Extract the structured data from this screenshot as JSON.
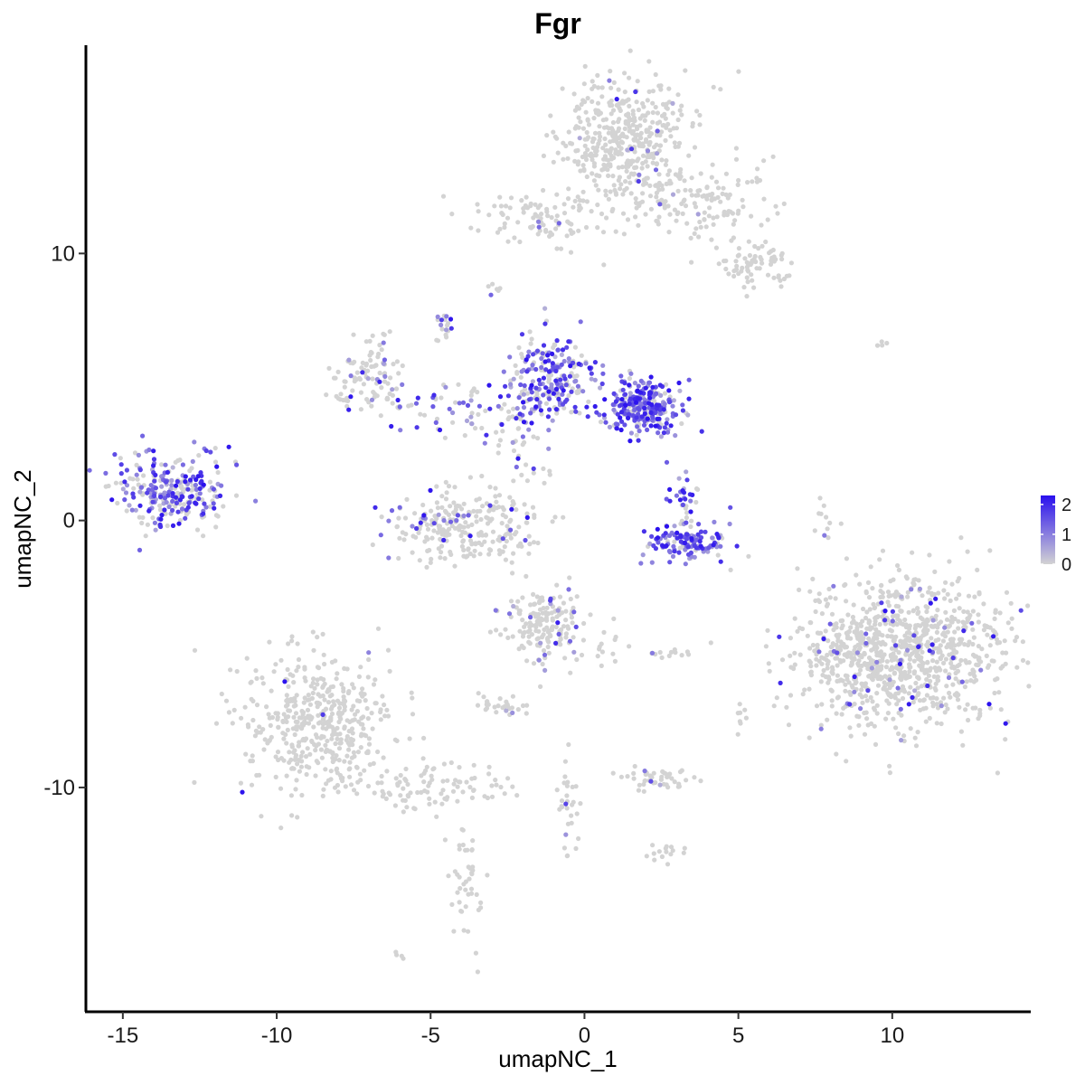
{
  "chart_data": {
    "type": "scatter",
    "title": "Fgr",
    "xlabel": "umapNC_1",
    "ylabel": "umapNC_2",
    "xlim": [
      -16.2,
      14.5
    ],
    "ylim": [
      -18.4,
      17.8
    ],
    "x_ticks": [
      -15,
      -10,
      -5,
      0,
      5,
      10
    ],
    "y_ticks": [
      -10,
      0,
      10
    ],
    "x_tick_labels": [
      "-15",
      "-10",
      "-5",
      "0",
      "5",
      "10"
    ],
    "y_tick_labels": [
      "-10",
      "0",
      "10"
    ],
    "grid": false,
    "legend": {
      "placement": "right",
      "type": "colorbar",
      "min": 0,
      "max": 2.3,
      "ticks": [
        0,
        1,
        2
      ],
      "tick_labels": [
        "0",
        "1",
        "2"
      ]
    },
    "colors": {
      "low": "#d3d3d3",
      "high": "#2a10ee"
    },
    "clusters": [
      {
        "cx": 1.2,
        "cy": 14.4,
        "sx": 1.0,
        "sy": 1.2,
        "n": 420,
        "expr": 0.02
      },
      {
        "cx": 3.5,
        "cy": 12.0,
        "sx": 1.3,
        "sy": 0.8,
        "n": 160,
        "expr": 0.03
      },
      {
        "cx": 5.5,
        "cy": 9.5,
        "sx": 0.6,
        "sy": 0.4,
        "n": 70,
        "expr": 0.02
      },
      {
        "cx": -1.7,
        "cy": 11.3,
        "sx": 1.1,
        "sy": 0.5,
        "n": 90,
        "expr": 0.05
      },
      {
        "cx": 10.5,
        "cy": -4.8,
        "sx": 1.7,
        "sy": 1.4,
        "n": 900,
        "expr": 0.05
      },
      {
        "cx": 8.8,
        "cy": -5.4,
        "sx": 0.7,
        "sy": 0.9,
        "n": 120,
        "expr": 0.06
      },
      {
        "cx": -13.5,
        "cy": 1.1,
        "sx": 0.85,
        "sy": 0.65,
        "n": 260,
        "expr": 0.65
      },
      {
        "cx": -1.0,
        "cy": 5.3,
        "sx": 0.7,
        "sy": 0.8,
        "n": 220,
        "expr": 0.65
      },
      {
        "cx": 1.9,
        "cy": 4.2,
        "sx": 0.6,
        "sy": 0.5,
        "n": 260,
        "expr": 0.85
      },
      {
        "cx": 3.4,
        "cy": -0.8,
        "sx": 0.7,
        "sy": 0.3,
        "n": 130,
        "expr": 0.85
      },
      {
        "cx": 3.2,
        "cy": 0.8,
        "sx": 0.25,
        "sy": 0.6,
        "n": 30,
        "expr": 0.75
      },
      {
        "cx": -3.9,
        "cy": -0.3,
        "sx": 1.2,
        "sy": 0.7,
        "n": 260,
        "expr": 0.12
      },
      {
        "cx": -7.0,
        "cy": 5.3,
        "sx": 0.6,
        "sy": 0.7,
        "n": 110,
        "expr": 0.18
      },
      {
        "cx": -4.2,
        "cy": 4.2,
        "sx": 1.0,
        "sy": 0.6,
        "n": 60,
        "expr": 0.45
      },
      {
        "cx": -2.2,
        "cy": 3.0,
        "sx": 0.5,
        "sy": 1.2,
        "n": 55,
        "expr": 0.35
      },
      {
        "cx": -4.6,
        "cy": 7.2,
        "sx": 0.2,
        "sy": 0.25,
        "n": 18,
        "expr": 0.55
      },
      {
        "cx": -1.2,
        "cy": -3.9,
        "sx": 0.7,
        "sy": 0.7,
        "n": 170,
        "expr": 0.07
      },
      {
        "cx": -2.6,
        "cy": -6.9,
        "sx": 0.4,
        "sy": 0.2,
        "n": 28,
        "expr": 0.05
      },
      {
        "cx": -8.6,
        "cy": -7.6,
        "sx": 1.2,
        "sy": 1.3,
        "n": 460,
        "expr": 0.01
      },
      {
        "cx": -5.0,
        "cy": -10.0,
        "sx": 1.3,
        "sy": 0.5,
        "n": 90,
        "expr": 0.01
      },
      {
        "cx": -3.8,
        "cy": -13.2,
        "sx": 0.3,
        "sy": 1.2,
        "n": 45,
        "expr": 0.01
      },
      {
        "cx": 2.3,
        "cy": -9.7,
        "sx": 0.6,
        "sy": 0.2,
        "n": 45,
        "expr": 0.04
      },
      {
        "cx": 2.7,
        "cy": -12.5,
        "sx": 0.3,
        "sy": 0.2,
        "n": 15,
        "expr": 0.02
      },
      {
        "cx": -0.5,
        "cy": -10.8,
        "sx": 0.25,
        "sy": 1.0,
        "n": 30,
        "expr": 0.06
      },
      {
        "cx": 2.9,
        "cy": -5.0,
        "sx": 0.3,
        "sy": 0.1,
        "n": 12,
        "expr": 0.02
      },
      {
        "cx": 5.1,
        "cy": -7.3,
        "sx": 0.1,
        "sy": 0.3,
        "n": 8,
        "expr": 0.02
      },
      {
        "cx": 7.8,
        "cy": 0.0,
        "sx": 0.1,
        "sy": 0.4,
        "n": 10,
        "expr": 0.02
      },
      {
        "cx": 9.5,
        "cy": 6.7,
        "sx": 0.3,
        "sy": 0.1,
        "n": 4,
        "expr": 0.02
      },
      {
        "cx": -6.0,
        "cy": -16.3,
        "sx": 0.1,
        "sy": 0.1,
        "n": 4,
        "expr": 0.02
      },
      {
        "cx": -3.0,
        "cy": 8.6,
        "sx": 0.15,
        "sy": 0.2,
        "n": 6,
        "expr": 0.15
      },
      {
        "cx": -12.0,
        "cy": 2.5,
        "sx": 0.3,
        "sy": 0.3,
        "n": 10,
        "expr": 0.55
      },
      {
        "cx": 0.5,
        "cy": -4.8,
        "sx": 0.4,
        "sy": 0.4,
        "n": 14,
        "expr": 0.1
      }
    ]
  }
}
